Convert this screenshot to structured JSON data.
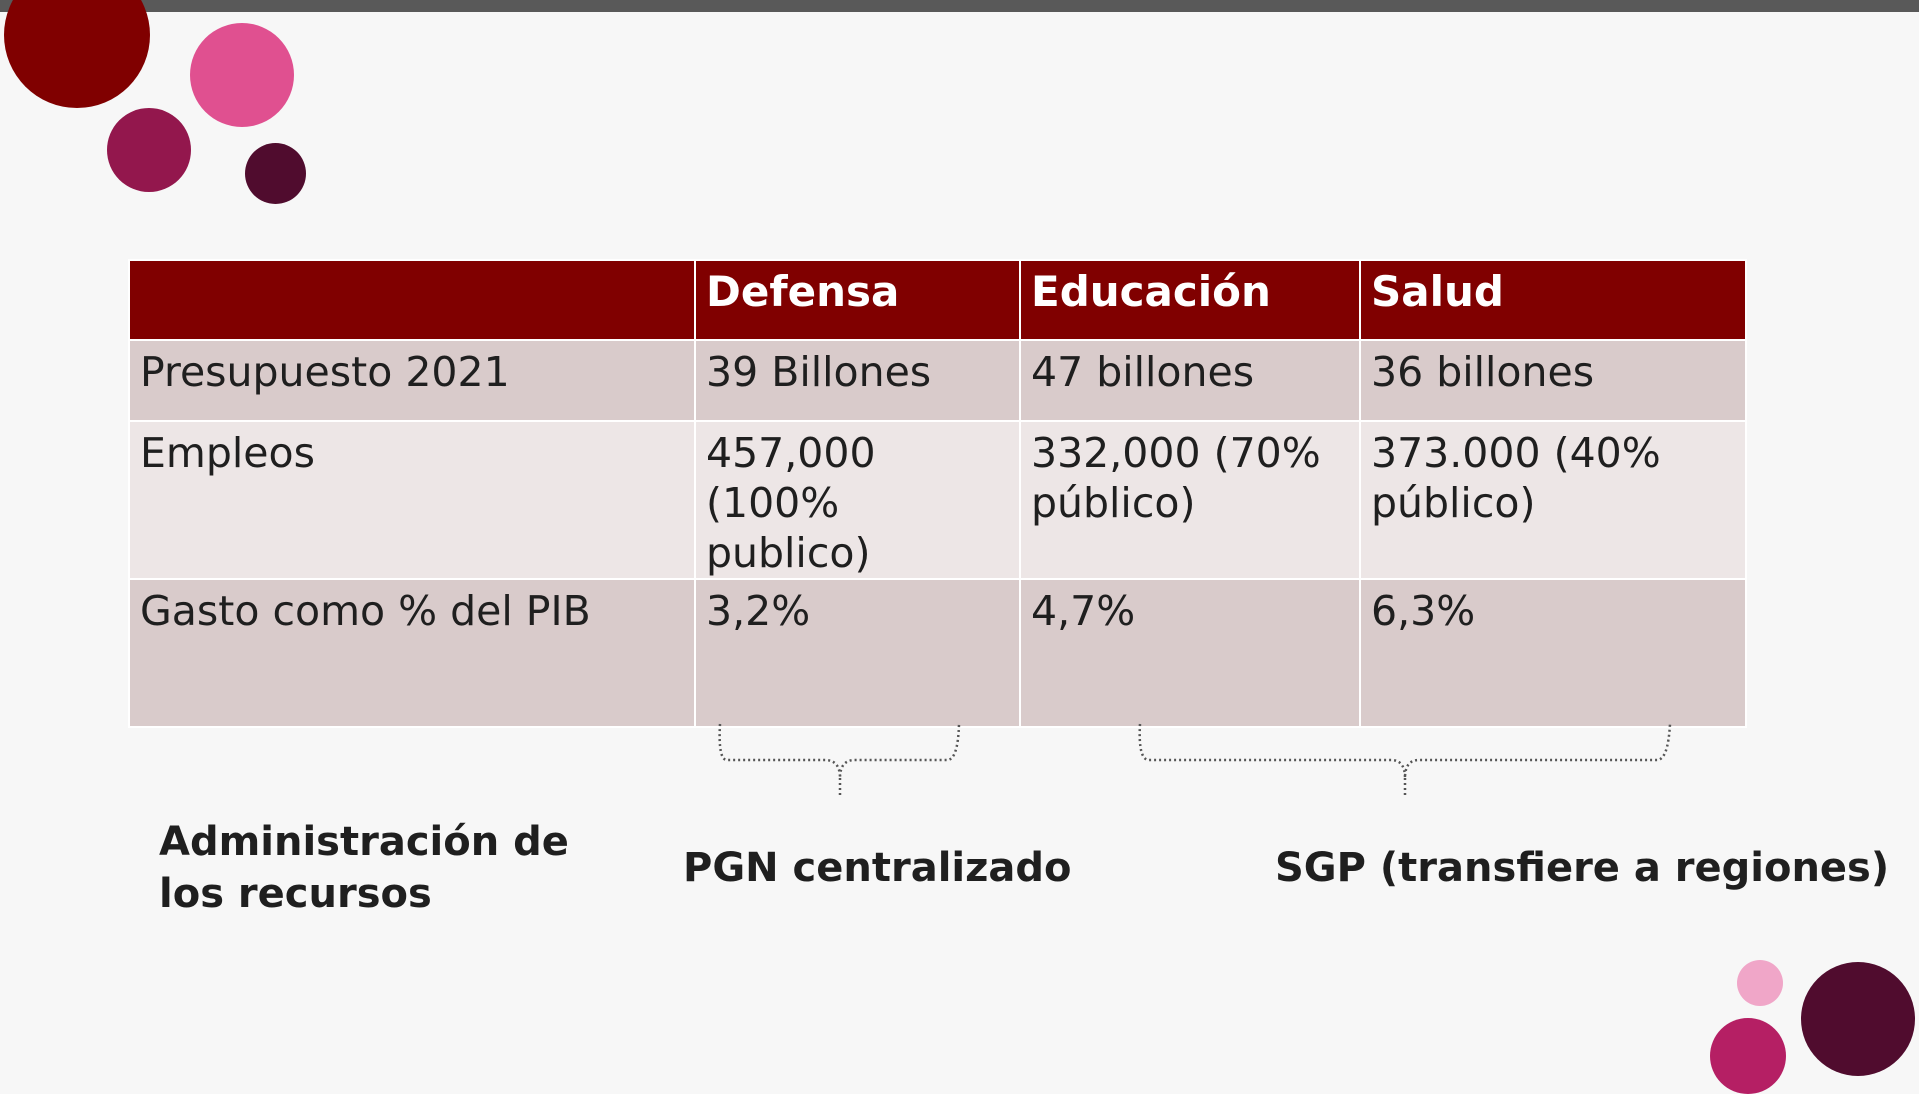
{
  "table": {
    "headers": [
      "",
      "Defensa",
      "Educación",
      "Salud"
    ],
    "rows": [
      [
        "Presupuesto 2021",
        "39 Billones",
        "47 billones",
        "36 billones"
      ],
      [
        "Empleos",
        "457,000 (100% publico)",
        "332,000 (70% público)",
        "373.000 (40% público)"
      ],
      [
        "Gasto como % del PIB",
        "3,2%",
        "4,7%",
        "6,3%"
      ]
    ]
  },
  "labels": {
    "admin": "Administración de los recursos",
    "pgn": "PGN centralizado",
    "sgp": "SGP (transfiere a regiones)"
  },
  "colors": {
    "header": "#800000",
    "row_dark": "#d9cbcb",
    "row_light": "#ede6e6",
    "top_bar": "#595959"
  }
}
